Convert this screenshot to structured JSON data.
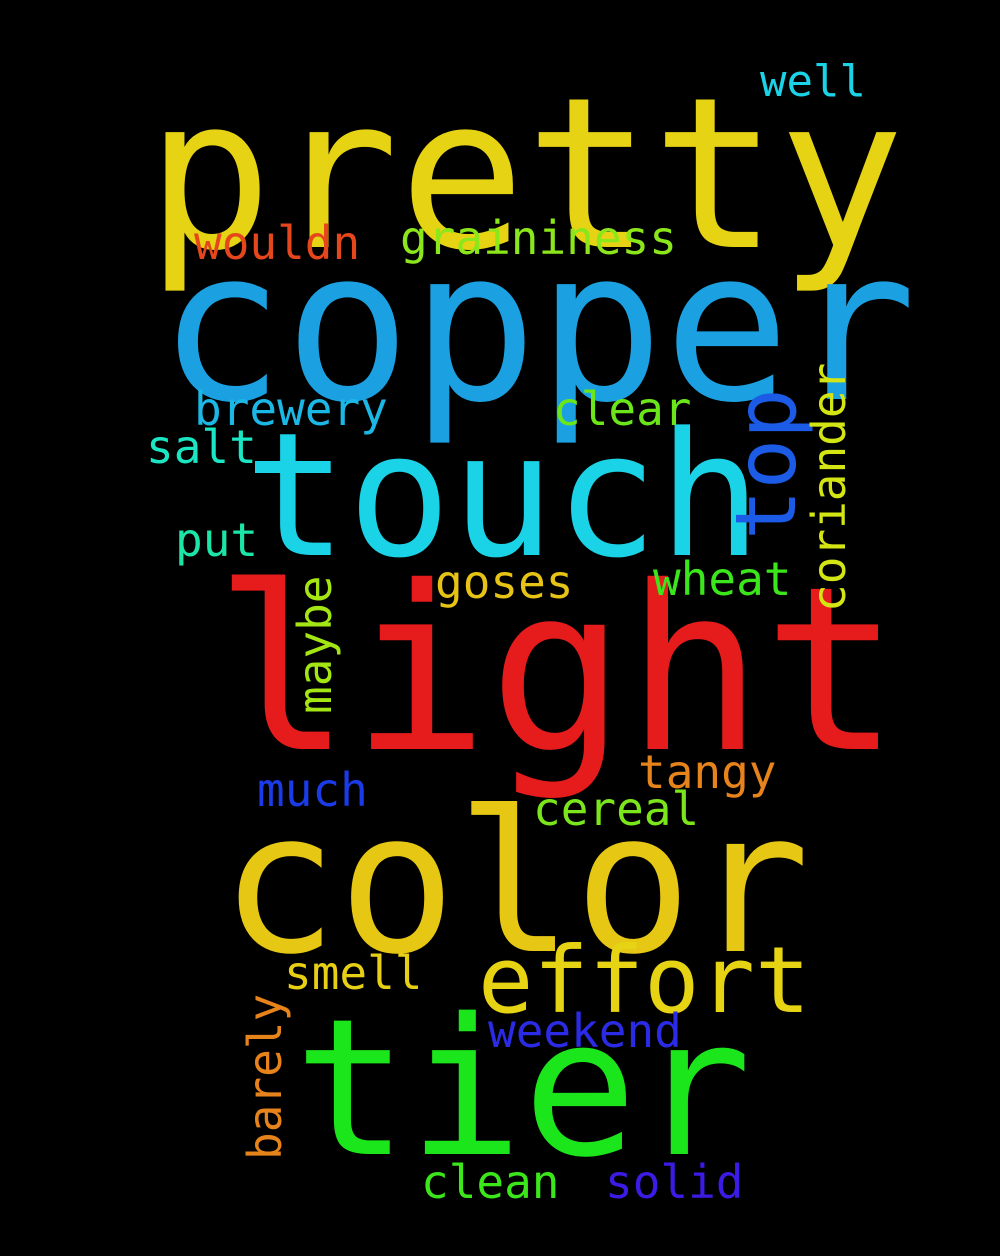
{
  "words": {
    "pretty": {
      "text": "pretty",
      "color": "#E6D314"
    },
    "copper": {
      "text": "copper",
      "color": "#1BA1E2"
    },
    "touch": {
      "text": "touch",
      "color": "#1BD3E6"
    },
    "light": {
      "text": "light",
      "color": "#E61B1B"
    },
    "color": {
      "text": "color",
      "color": "#E6C814"
    },
    "tier": {
      "text": "tier",
      "color": "#1BE61B"
    },
    "effort": {
      "text": "effort",
      "color": "#E6D314"
    },
    "well": {
      "text": "well",
      "color": "#1BD3E6"
    },
    "graininess": {
      "text": "graininess",
      "color": "#8BE61B"
    },
    "wouldn": {
      "text": "wouldn",
      "color": "#E6461B"
    },
    "brewery": {
      "text": "brewery",
      "color": "#1BB8E6"
    },
    "clear": {
      "text": "clear",
      "color": "#6BE61B"
    },
    "salt": {
      "text": "salt",
      "color": "#1BE6C4"
    },
    "put": {
      "text": "put",
      "color": "#1BE6A8"
    },
    "goses": {
      "text": "goses",
      "color": "#E6C314"
    },
    "wheat": {
      "text": "wheat",
      "color": "#3BE61B"
    },
    "tangy": {
      "text": "tangy",
      "color": "#E6831B"
    },
    "much": {
      "text": "much",
      "color": "#1B3BE6"
    },
    "cereal": {
      "text": "cereal",
      "color": "#7BE61B"
    },
    "smell": {
      "text": "smell",
      "color": "#E6CF14"
    },
    "weekend": {
      "text": "weekend",
      "color": "#2B2BE6"
    },
    "clean": {
      "text": "clean",
      "color": "#3BE61B"
    },
    "solid": {
      "text": "solid",
      "color": "#3B1BE6"
    },
    "top": {
      "text": "top",
      "color": "#1B5BE6"
    },
    "coriander": {
      "text": "coriander",
      "color": "#D3E614"
    },
    "maybe": {
      "text": "maybe",
      "color": "#A3E614"
    },
    "barely": {
      "text": "barely",
      "color": "#E6831B"
    }
  }
}
